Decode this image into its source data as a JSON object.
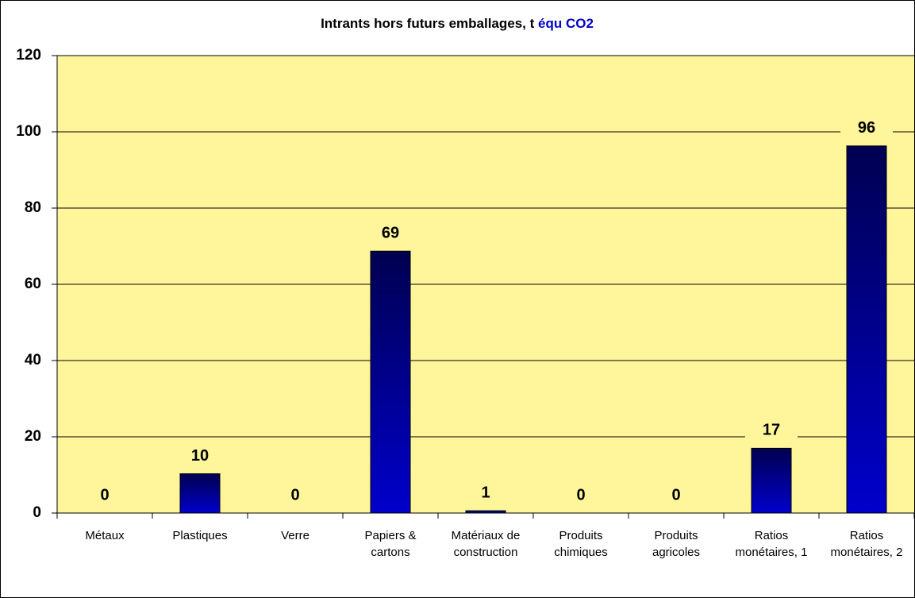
{
  "chart_data": {
    "type": "bar",
    "title": "Intrants hors futurs emballages, t",
    "title_unit": "équ CO2",
    "categories": [
      "Métaux",
      "Plastiques",
      "Verre",
      "Papiers & cartons",
      "Matériaux de construction",
      "Produits chimiques",
      "Produits agricoles",
      "Ratios monétaires, 1",
      "Ratios monétaires, 2"
    ],
    "values": [
      0,
      10.3,
      0,
      68.7,
      0.6,
      0,
      0,
      17,
      96.3
    ],
    "value_labels": [
      "0",
      "10",
      "0",
      "69",
      "1",
      "0",
      "0",
      "17",
      "96"
    ],
    "color": "#0000cc",
    "plot_color": "#fff59b",
    "ylim": [
      0,
      120
    ],
    "yticks": [
      0,
      20,
      40,
      60,
      80,
      100,
      120
    ],
    "grid": true
  }
}
